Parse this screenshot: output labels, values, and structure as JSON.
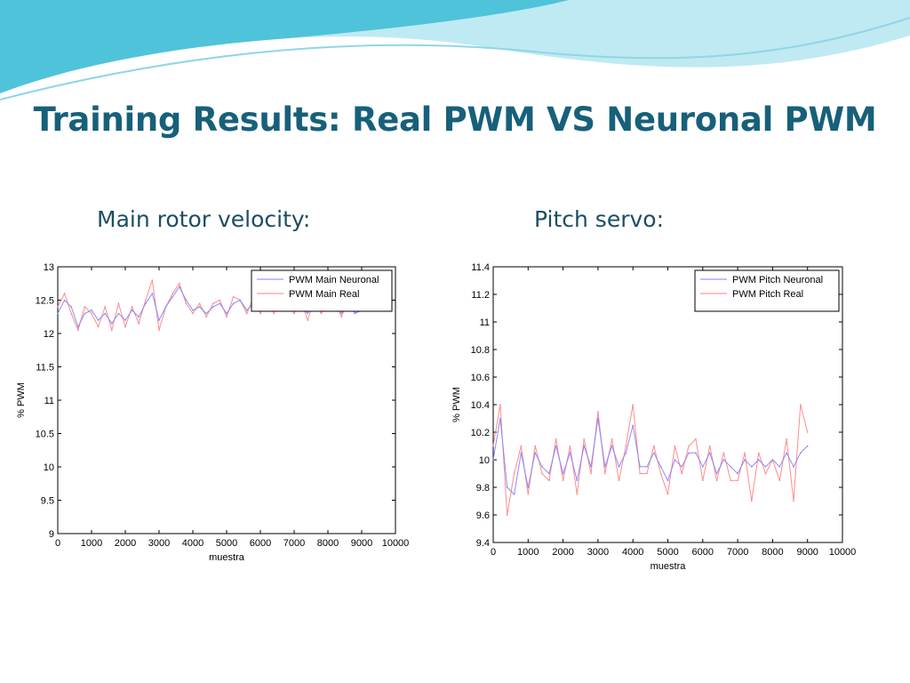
{
  "slide": {
    "title": "Training Results: Real PWM VS Neuronal PWM",
    "subtitle_left": "Main rotor velocity:",
    "subtitle_right": "Pitch servo:"
  },
  "colors": {
    "title": "#17607a",
    "subtitle": "#1b4e63",
    "neuronal_series": "#7f7fff",
    "real_series": "#ff7f7f",
    "wave_dark": "#4fc3d9",
    "wave_light": "#bfeaf3"
  },
  "chart_data": [
    {
      "type": "line",
      "xlabel": "muestra",
      "ylabel": "% PWM",
      "xlim": [
        0,
        10000
      ],
      "ylim": [
        9,
        13
      ],
      "xticks": [
        0,
        1000,
        2000,
        3000,
        4000,
        5000,
        6000,
        7000,
        8000,
        9000,
        10000
      ],
      "yticks": [
        9,
        9.5,
        10,
        10.5,
        11,
        11.5,
        12,
        12.5,
        13
      ],
      "legend_position": "top-right",
      "grid": false,
      "series": [
        {
          "name": "PWM Main Neuronal",
          "color": "#7f7fff",
          "x": [
            0,
            200,
            400,
            600,
            800,
            1000,
            1200,
            1400,
            1600,
            1800,
            2000,
            2200,
            2400,
            2600,
            2800,
            3000,
            3200,
            3400,
            3600,
            3800,
            4000,
            4200,
            4400,
            4600,
            4800,
            5000,
            5200,
            5400,
            5600,
            5800,
            6000,
            6200,
            6400,
            6600,
            6800,
            7000,
            7200,
            7400,
            7600,
            7800,
            8000,
            8200,
            8400,
            8600,
            8800,
            9000
          ],
          "y": [
            12.3,
            12.5,
            12.4,
            12.1,
            12.3,
            12.35,
            12.2,
            12.3,
            12.15,
            12.3,
            12.2,
            12.35,
            12.25,
            12.45,
            12.6,
            12.2,
            12.4,
            12.55,
            12.7,
            12.5,
            12.35,
            12.4,
            12.3,
            12.4,
            12.45,
            12.3,
            12.45,
            12.5,
            12.35,
            12.45,
            12.4,
            12.5,
            12.35,
            12.5,
            12.45,
            12.35,
            12.4,
            12.3,
            12.45,
            12.35,
            12.4,
            12.45,
            12.3,
            12.45,
            12.3,
            12.35
          ]
        },
        {
          "name": "PWM Main Real",
          "color": "#ff7f7f",
          "x": [
            0,
            200,
            400,
            600,
            800,
            1000,
            1200,
            1400,
            1600,
            1800,
            2000,
            2200,
            2400,
            2600,
            2800,
            3000,
            3200,
            3400,
            3600,
            3800,
            4000,
            4200,
            4400,
            4600,
            4800,
            5000,
            5200,
            5400,
            5600,
            5800,
            6000,
            6200,
            6400,
            6600,
            6800,
            7000,
            7200,
            7400,
            7600,
            7800,
            8000,
            8200,
            8400,
            8600,
            8800,
            9000
          ],
          "y": [
            12.4,
            12.6,
            12.3,
            12.05,
            12.4,
            12.3,
            12.1,
            12.4,
            12.05,
            12.45,
            12.1,
            12.4,
            12.15,
            12.5,
            12.8,
            12.05,
            12.4,
            12.6,
            12.75,
            12.45,
            12.3,
            12.45,
            12.25,
            12.45,
            12.5,
            12.25,
            12.55,
            12.5,
            12.3,
            12.55,
            12.3,
            12.55,
            12.3,
            12.55,
            12.45,
            12.3,
            12.5,
            12.2,
            12.5,
            12.3,
            12.45,
            12.5,
            12.25,
            12.5,
            12.3,
            12.4
          ]
        }
      ]
    },
    {
      "type": "line",
      "xlabel": "muestra",
      "ylabel": "% PWM",
      "xlim": [
        0,
        10000
      ],
      "ylim": [
        9.4,
        11.4
      ],
      "xticks": [
        0,
        1000,
        2000,
        3000,
        4000,
        5000,
        6000,
        7000,
        8000,
        9000,
        10000
      ],
      "yticks": [
        9.4,
        9.6,
        9.8,
        10,
        10.2,
        10.4,
        10.6,
        10.8,
        11,
        11.2,
        11.4
      ],
      "legend_position": "top-right",
      "grid": false,
      "series": [
        {
          "name": "PWM Pitch Neuronal",
          "color": "#7f7fff",
          "x": [
            0,
            200,
            400,
            600,
            800,
            1000,
            1200,
            1400,
            1600,
            1800,
            2000,
            2200,
            2400,
            2600,
            2800,
            3000,
            3200,
            3400,
            3600,
            3800,
            4000,
            4200,
            4400,
            4600,
            4800,
            5000,
            5200,
            5400,
            5600,
            5800,
            6000,
            6200,
            6400,
            6600,
            6800,
            7000,
            7200,
            7400,
            7600,
            7800,
            8000,
            8200,
            8400,
            8600,
            8800,
            9000
          ],
          "y": [
            10.0,
            10.3,
            9.8,
            9.75,
            10.05,
            9.8,
            10.05,
            9.95,
            9.9,
            10.1,
            9.9,
            10.05,
            9.85,
            10.1,
            9.95,
            10.3,
            9.95,
            10.1,
            9.95,
            10.05,
            10.25,
            9.95,
            9.95,
            10.05,
            9.95,
            9.85,
            10.0,
            9.95,
            10.05,
            10.05,
            9.95,
            10.05,
            9.9,
            10.0,
            9.95,
            9.9,
            10.0,
            9.95,
            10.0,
            9.95,
            10.0,
            9.95,
            10.05,
            9.95,
            10.05,
            10.1
          ]
        },
        {
          "name": "PWM Pitch Real",
          "color": "#ff7f7f",
          "x": [
            0,
            200,
            400,
            600,
            800,
            1000,
            1200,
            1400,
            1600,
            1800,
            2000,
            2200,
            2400,
            2600,
            2800,
            3000,
            3200,
            3400,
            3600,
            3800,
            4000,
            4200,
            4400,
            4600,
            4800,
            5000,
            5200,
            5400,
            5600,
            5800,
            6000,
            6200,
            6400,
            6600,
            6800,
            7000,
            7200,
            7400,
            7600,
            7800,
            8000,
            8200,
            8400,
            8600,
            8800,
            9000
          ],
          "y": [
            10.1,
            10.4,
            9.6,
            9.9,
            10.1,
            9.75,
            10.1,
            9.9,
            9.85,
            10.15,
            9.85,
            10.1,
            9.75,
            10.15,
            9.9,
            10.35,
            9.9,
            10.15,
            9.85,
            10.1,
            10.4,
            9.9,
            9.9,
            10.1,
            9.9,
            9.75,
            10.1,
            9.9,
            10.1,
            10.15,
            9.85,
            10.1,
            9.85,
            10.05,
            9.85,
            9.85,
            10.05,
            9.7,
            10.05,
            9.9,
            10.0,
            9.85,
            10.15,
            9.7,
            10.4,
            10.2
          ]
        }
      ]
    }
  ]
}
